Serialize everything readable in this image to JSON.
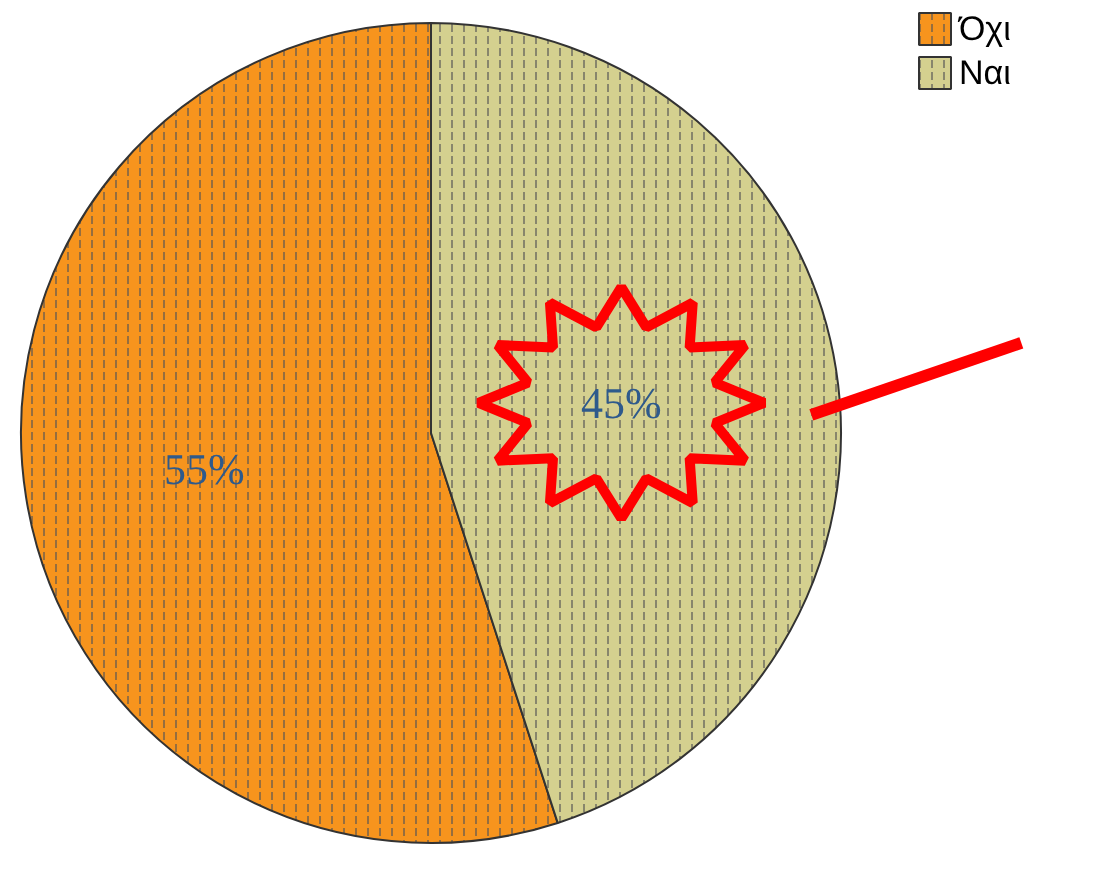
{
  "chart_data": {
    "type": "pie",
    "categories": [
      "Όχι",
      "Ναι"
    ],
    "values": [
      55,
      45
    ],
    "colors": [
      "#f7941d",
      "#d4d08f"
    ],
    "value_labels": [
      "55%",
      "45%"
    ],
    "legend": "top right"
  }
}
